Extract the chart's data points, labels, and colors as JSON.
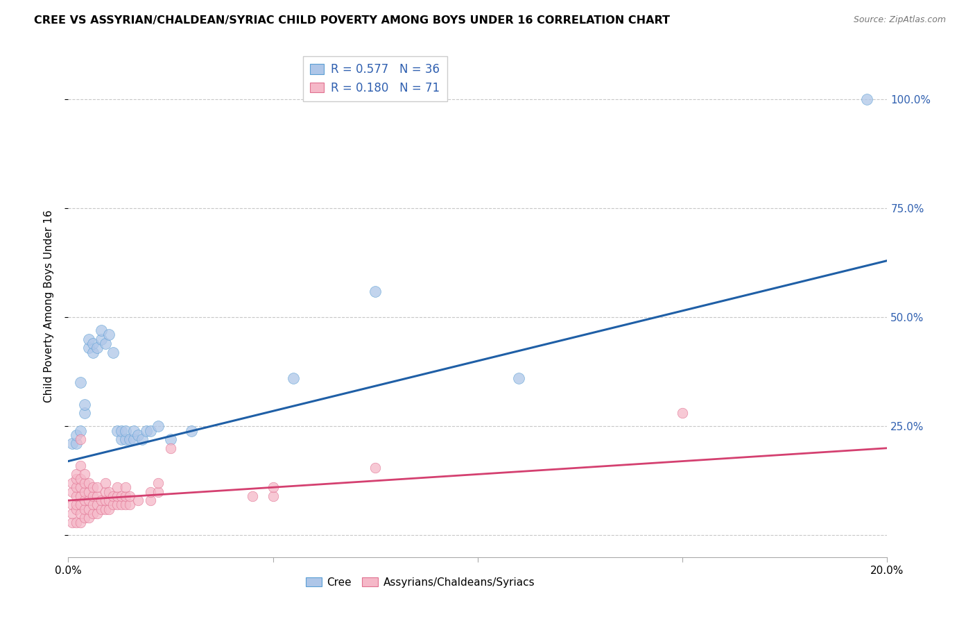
{
  "title": "CREE VS ASSYRIAN/CHALDEAN/SYRIAC CHILD POVERTY AMONG BOYS UNDER 16 CORRELATION CHART",
  "source": "Source: ZipAtlas.com",
  "ylabel": "Child Poverty Among Boys Under 16",
  "xlim": [
    0.0,
    0.2
  ],
  "ylim": [
    -0.05,
    1.1
  ],
  "yticks": [
    0.0,
    0.25,
    0.5,
    0.75,
    1.0
  ],
  "ytick_labels": [
    "",
    "25.0%",
    "50.0%",
    "75.0%",
    "100.0%"
  ],
  "xtick_labels": [
    "0.0%",
    "",
    "",
    "",
    "20.0%"
  ],
  "cree_color": "#aec6e8",
  "cree_edge_color": "#5a9fd4",
  "assyrian_color": "#f5b8c8",
  "assyrian_edge_color": "#e07090",
  "cree_line_color": "#1f5fa6",
  "assyrian_line_color": "#d44070",
  "cree_R": "0.577",
  "cree_N": "36",
  "assyrian_R": "0.180",
  "assyrian_N": "71",
  "legend_label_color": "#3060b0",
  "cree_line_y0": 0.17,
  "cree_line_y1": 0.63,
  "assyrian_line_y0": 0.08,
  "assyrian_line_y1": 0.2,
  "cree_points": [
    [
      0.001,
      0.21
    ],
    [
      0.002,
      0.21
    ],
    [
      0.002,
      0.23
    ],
    [
      0.003,
      0.24
    ],
    [
      0.003,
      0.35
    ],
    [
      0.004,
      0.28
    ],
    [
      0.004,
      0.3
    ],
    [
      0.005,
      0.43
    ],
    [
      0.005,
      0.45
    ],
    [
      0.006,
      0.42
    ],
    [
      0.006,
      0.44
    ],
    [
      0.007,
      0.43
    ],
    [
      0.008,
      0.45
    ],
    [
      0.008,
      0.47
    ],
    [
      0.009,
      0.44
    ],
    [
      0.01,
      0.46
    ],
    [
      0.011,
      0.42
    ],
    [
      0.012,
      0.24
    ],
    [
      0.013,
      0.22
    ],
    [
      0.013,
      0.24
    ],
    [
      0.014,
      0.22
    ],
    [
      0.014,
      0.24
    ],
    [
      0.015,
      0.22
    ],
    [
      0.016,
      0.22
    ],
    [
      0.016,
      0.24
    ],
    [
      0.017,
      0.23
    ],
    [
      0.018,
      0.22
    ],
    [
      0.019,
      0.24
    ],
    [
      0.02,
      0.24
    ],
    [
      0.022,
      0.25
    ],
    [
      0.025,
      0.22
    ],
    [
      0.03,
      0.24
    ],
    [
      0.055,
      0.36
    ],
    [
      0.075,
      0.56
    ],
    [
      0.11,
      0.36
    ],
    [
      0.195,
      1.0
    ]
  ],
  "assyrian_points": [
    [
      0.001,
      0.03
    ],
    [
      0.001,
      0.05
    ],
    [
      0.001,
      0.07
    ],
    [
      0.001,
      0.1
    ],
    [
      0.001,
      0.12
    ],
    [
      0.002,
      0.03
    ],
    [
      0.002,
      0.06
    ],
    [
      0.002,
      0.07
    ],
    [
      0.002,
      0.09
    ],
    [
      0.002,
      0.11
    ],
    [
      0.002,
      0.13
    ],
    [
      0.002,
      0.14
    ],
    [
      0.003,
      0.03
    ],
    [
      0.003,
      0.05
    ],
    [
      0.003,
      0.07
    ],
    [
      0.003,
      0.09
    ],
    [
      0.003,
      0.11
    ],
    [
      0.003,
      0.13
    ],
    [
      0.003,
      0.16
    ],
    [
      0.003,
      0.22
    ],
    [
      0.004,
      0.04
    ],
    [
      0.004,
      0.06
    ],
    [
      0.004,
      0.08
    ],
    [
      0.004,
      0.1
    ],
    [
      0.004,
      0.12
    ],
    [
      0.004,
      0.14
    ],
    [
      0.005,
      0.04
    ],
    [
      0.005,
      0.06
    ],
    [
      0.005,
      0.08
    ],
    [
      0.005,
      0.1
    ],
    [
      0.005,
      0.12
    ],
    [
      0.006,
      0.05
    ],
    [
      0.006,
      0.07
    ],
    [
      0.006,
      0.09
    ],
    [
      0.006,
      0.11
    ],
    [
      0.007,
      0.05
    ],
    [
      0.007,
      0.07
    ],
    [
      0.007,
      0.09
    ],
    [
      0.007,
      0.11
    ],
    [
      0.008,
      0.06
    ],
    [
      0.008,
      0.08
    ],
    [
      0.009,
      0.06
    ],
    [
      0.009,
      0.08
    ],
    [
      0.009,
      0.1
    ],
    [
      0.009,
      0.12
    ],
    [
      0.01,
      0.06
    ],
    [
      0.01,
      0.08
    ],
    [
      0.01,
      0.1
    ],
    [
      0.011,
      0.07
    ],
    [
      0.011,
      0.09
    ],
    [
      0.012,
      0.07
    ],
    [
      0.012,
      0.09
    ],
    [
      0.012,
      0.11
    ],
    [
      0.013,
      0.07
    ],
    [
      0.013,
      0.09
    ],
    [
      0.014,
      0.07
    ],
    [
      0.014,
      0.09
    ],
    [
      0.014,
      0.11
    ],
    [
      0.015,
      0.07
    ],
    [
      0.015,
      0.09
    ],
    [
      0.017,
      0.08
    ],
    [
      0.02,
      0.08
    ],
    [
      0.02,
      0.1
    ],
    [
      0.022,
      0.1
    ],
    [
      0.022,
      0.12
    ],
    [
      0.025,
      0.2
    ],
    [
      0.045,
      0.09
    ],
    [
      0.05,
      0.09
    ],
    [
      0.05,
      0.11
    ],
    [
      0.075,
      0.155
    ],
    [
      0.15,
      0.28
    ]
  ]
}
